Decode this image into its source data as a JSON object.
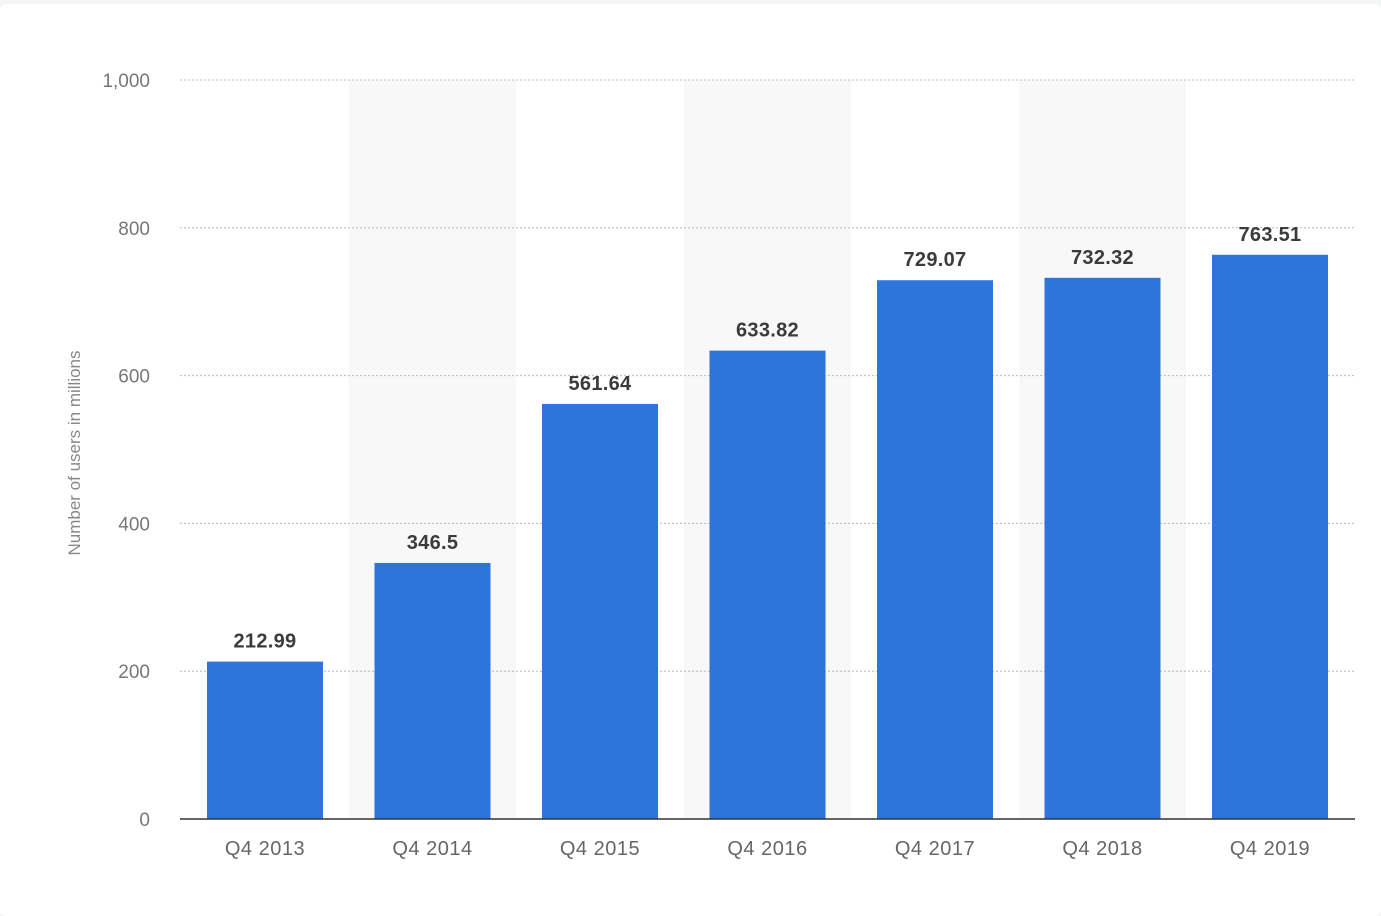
{
  "chart_data": {
    "type": "bar",
    "categories": [
      "Q4 2013",
      "Q4 2014",
      "Q4 2015",
      "Q4 2016",
      "Q4 2017",
      "Q4 2018",
      "Q4 2019"
    ],
    "values": [
      212.99,
      346.5,
      561.64,
      633.82,
      729.07,
      732.32,
      763.51
    ],
    "value_labels": [
      "212.99",
      "346.5",
      "561.64",
      "633.82",
      "729.07",
      "732.32",
      "763.51"
    ],
    "title": "",
    "xlabel": "",
    "ylabel": "Number of users in millions",
    "ylim": [
      0,
      1000
    ],
    "yticks": [
      0,
      200,
      400,
      600,
      800,
      1000
    ],
    "ytick_labels": [
      "0",
      "200",
      "400",
      "600",
      "800",
      "1,000"
    ],
    "grid": true,
    "bar_color": "#2d75db",
    "band_color": "#f8f8f8"
  }
}
